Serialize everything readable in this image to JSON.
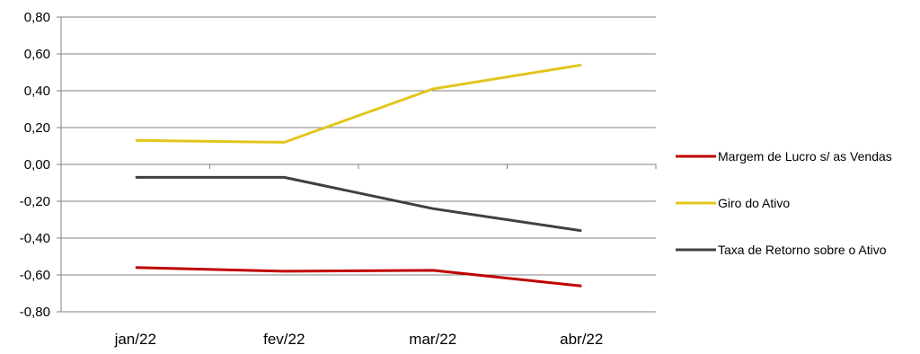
{
  "chart_data": {
    "type": "line",
    "title": "",
    "xlabel": "",
    "ylabel": "",
    "categories": [
      "jan/22",
      "fev/22",
      "mar/22",
      "abr/22"
    ],
    "ylim": [
      -0.8,
      0.8
    ],
    "y_ticks": [
      "0,80",
      "0,60",
      "0,40",
      "0,20",
      "0,00",
      "-0,20",
      "-0,40",
      "-0,60",
      "-0,80"
    ],
    "grid": true,
    "legend_position": "right",
    "series": [
      {
        "name": "Margem de Lucro s/ as Vendas",
        "color": "#c00000",
        "values": [
          -0.56,
          -0.58,
          -0.575,
          -0.66
        ]
      },
      {
        "name": "Giro do Ativo",
        "color": "#e3c51b",
        "values": [
          0.13,
          0.12,
          0.41,
          0.54
        ]
      },
      {
        "name": "Taxa de Retorno sobre o Ativo",
        "color": "#404040",
        "values": [
          -0.07,
          -0.07,
          -0.24,
          -0.36
        ]
      }
    ]
  }
}
